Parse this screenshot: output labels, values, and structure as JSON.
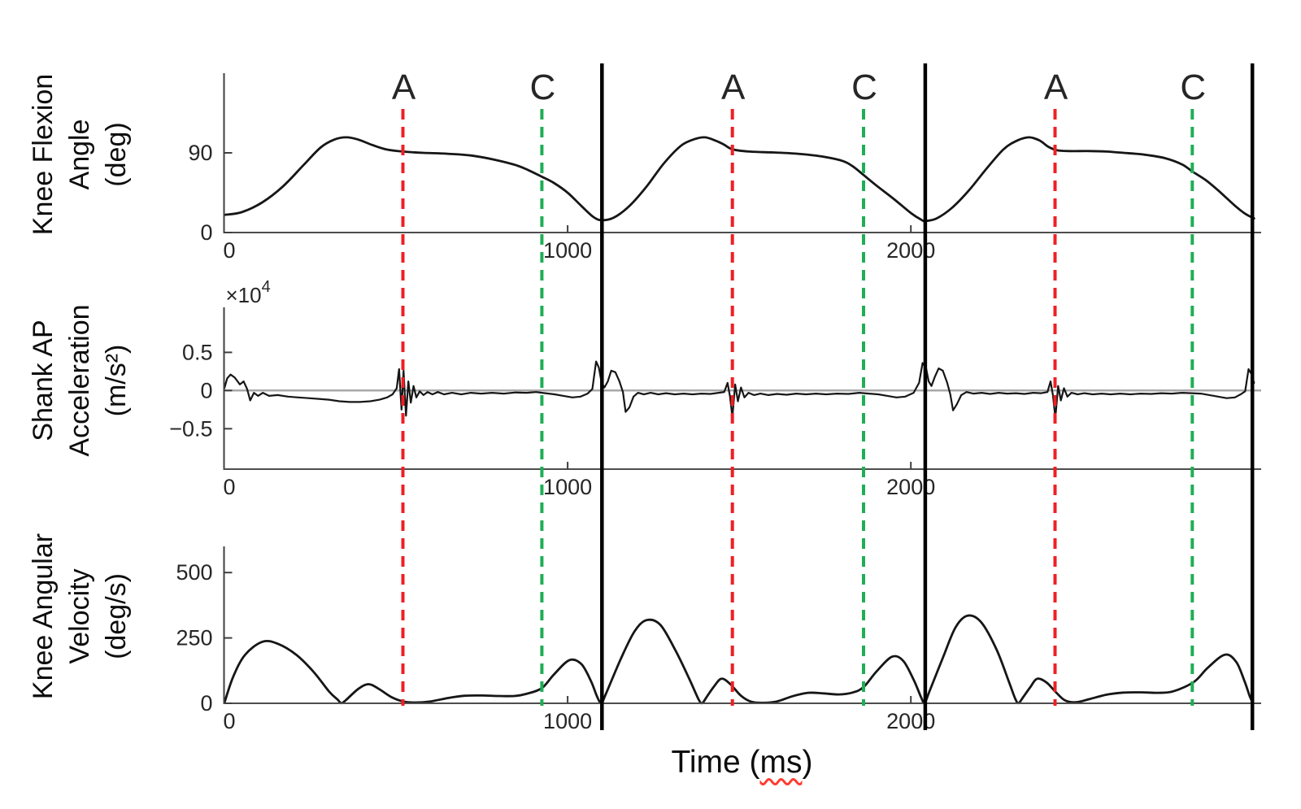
{
  "figure": {
    "background": "#ffffff",
    "ylabels": [
      {
        "lines": [
          "Knee Flexion",
          "Angle",
          "(deg)"
        ]
      },
      {
        "lines": [
          "Shank AP",
          "Acceleration",
          "(m/s²)"
        ]
      },
      {
        "lines": [
          "Knee Angular",
          "Velocity",
          "(deg/s)"
        ]
      }
    ],
    "xlabel": {
      "prefix": "Time (",
      "underlined": "ms",
      "suffix": ")"
    }
  },
  "events": {
    "groups": [
      {
        "name": "A",
        "label": "A",
        "color": "#ee1f24",
        "style": "dashed",
        "times": [
          520,
          1480,
          2420
        ]
      },
      {
        "name": "C",
        "label": "C",
        "color": "#1fae55",
        "style": "dashed",
        "times": [
          925,
          1862,
          2820
        ]
      },
      {
        "name": "cycle-boundary",
        "label": "",
        "color": "#000000",
        "style": "solid",
        "times": [
          1100,
          2042,
          2995
        ]
      }
    ]
  },
  "chart_data": [
    {
      "id": "knee-flexion-angle",
      "type": "line",
      "title": "",
      "ylabel": "Knee Flexion Angle (deg)",
      "xlabel": "Time (ms)",
      "xlim": [
        0,
        3000
      ],
      "ylim": [
        0,
        180
      ],
      "xticks": [
        0,
        1000,
        2000
      ],
      "yticks": [
        0,
        90
      ],
      "grid": false,
      "smooth": true,
      "line_color": "#161616",
      "points": [
        [
          0,
          20
        ],
        [
          50,
          23
        ],
        [
          110,
          34
        ],
        [
          170,
          52
        ],
        [
          230,
          76
        ],
        [
          280,
          96
        ],
        [
          320,
          105
        ],
        [
          355,
          107.5
        ],
        [
          390,
          105
        ],
        [
          430,
          99
        ],
        [
          470,
          94
        ],
        [
          520,
          91.5
        ],
        [
          580,
          90
        ],
        [
          650,
          89
        ],
        [
          720,
          87
        ],
        [
          790,
          82
        ],
        [
          850,
          76
        ],
        [
          885,
          70.5
        ],
        [
          925,
          63
        ],
        [
          960,
          56
        ],
        [
          1000,
          45
        ],
        [
          1040,
          30
        ],
        [
          1075,
          17.5
        ],
        [
          1100,
          14
        ],
        [
          1135,
          17
        ],
        [
          1180,
          30
        ],
        [
          1230,
          52
        ],
        [
          1280,
          78
        ],
        [
          1330,
          98
        ],
        [
          1370,
          105.5
        ],
        [
          1400,
          107.5
        ],
        [
          1430,
          104
        ],
        [
          1455,
          99.5
        ],
        [
          1480,
          94
        ],
        [
          1530,
          91.5
        ],
        [
          1600,
          90.5
        ],
        [
          1670,
          89
        ],
        [
          1740,
          86
        ],
        [
          1800,
          81
        ],
        [
          1830,
          75
        ],
        [
          1862,
          65
        ],
        [
          1900,
          53
        ],
        [
          1950,
          38
        ],
        [
          2000,
          22
        ],
        [
          2030,
          14.5
        ],
        [
          2042,
          13
        ],
        [
          2075,
          16
        ],
        [
          2120,
          28
        ],
        [
          2170,
          48
        ],
        [
          2220,
          72
        ],
        [
          2270,
          94
        ],
        [
          2310,
          104
        ],
        [
          2345,
          107.5
        ],
        [
          2375,
          104
        ],
        [
          2400,
          97
        ],
        [
          2425,
          93
        ],
        [
          2460,
          92
        ],
        [
          2520,
          92
        ],
        [
          2570,
          91.5
        ],
        [
          2620,
          90
        ],
        [
          2680,
          88
        ],
        [
          2740,
          84
        ],
        [
          2790,
          77
        ],
        [
          2820,
          69
        ],
        [
          2860,
          59
        ],
        [
          2900,
          46
        ],
        [
          2945,
          30
        ],
        [
          2975,
          21
        ],
        [
          3000,
          16
        ]
      ]
    },
    {
      "id": "shank-ap-acceleration",
      "type": "line",
      "title": "",
      "ylabel": "Shank AP Acceleration (m/s²)",
      "xlabel": "Time (ms)",
      "scale_label": {
        "multiplier": "×10",
        "exponent": "4"
      },
      "xlim": [
        0,
        3000
      ],
      "ylim": [
        -1.03,
        1.09
      ],
      "xticks": [
        0,
        1000,
        2000
      ],
      "yticks": [
        -0.5,
        0,
        0.5
      ],
      "zero_line": true,
      "zero_line_color": "#a8a8a8",
      "grid": false,
      "smooth": false,
      "line_color": "#161616",
      "points": [
        [
          0,
          0.03
        ],
        [
          8,
          0.16
        ],
        [
          18,
          0.21
        ],
        [
          30,
          0.17
        ],
        [
          45,
          0.08
        ],
        [
          56,
          0.12
        ],
        [
          66,
          0.02
        ],
        [
          75,
          -0.13
        ],
        [
          86,
          -0.03
        ],
        [
          98,
          -0.07
        ],
        [
          112,
          -0.03
        ],
        [
          130,
          -0.07
        ],
        [
          155,
          -0.06
        ],
        [
          185,
          -0.08
        ],
        [
          215,
          -0.09
        ],
        [
          245,
          -0.1
        ],
        [
          275,
          -0.11
        ],
        [
          305,
          -0.12
        ],
        [
          335,
          -0.14
        ],
        [
          365,
          -0.15
        ],
        [
          395,
          -0.15
        ],
        [
          425,
          -0.14
        ],
        [
          452,
          -0.12
        ],
        [
          474,
          -0.09
        ],
        [
          490,
          -0.05
        ],
        [
          502,
          0.03
        ],
        [
          509,
          0.28
        ],
        [
          516,
          -0.25
        ],
        [
          522,
          0.26
        ],
        [
          529,
          -0.33
        ],
        [
          536,
          0.12
        ],
        [
          543,
          -0.16
        ],
        [
          551,
          0.06
        ],
        [
          559,
          -0.09
        ],
        [
          569,
          -0.01
        ],
        [
          580,
          -0.06
        ],
        [
          592,
          -0.02
        ],
        [
          606,
          -0.05
        ],
        [
          622,
          -0.02
        ],
        [
          640,
          -0.05
        ],
        [
          663,
          -0.03
        ],
        [
          690,
          -0.05
        ],
        [
          718,
          -0.03
        ],
        [
          748,
          -0.04
        ],
        [
          780,
          -0.03
        ],
        [
          814,
          -0.04
        ],
        [
          848,
          -0.025
        ],
        [
          880,
          -0.03
        ],
        [
          908,
          -0.02
        ],
        [
          935,
          -0.035
        ],
        [
          962,
          -0.05
        ],
        [
          988,
          -0.07
        ],
        [
          1014,
          -0.09
        ],
        [
          1038,
          -0.08
        ],
        [
          1058,
          -0.04
        ],
        [
          1072,
          0.02
        ],
        [
          1083,
          0.38
        ],
        [
          1091,
          0.3
        ],
        [
          1099,
          0.1
        ],
        [
          1107,
          0.04
        ],
        [
          1117,
          0.12
        ],
        [
          1127,
          0.26
        ],
        [
          1139,
          0.24
        ],
        [
          1151,
          0.12
        ],
        [
          1161,
          -0.02
        ],
        [
          1169,
          -0.28
        ],
        [
          1180,
          -0.22
        ],
        [
          1192,
          -0.08
        ],
        [
          1205,
          -0.03
        ],
        [
          1222,
          -0.05
        ],
        [
          1242,
          -0.03
        ],
        [
          1264,
          -0.05
        ],
        [
          1287,
          -0.035
        ],
        [
          1312,
          -0.05
        ],
        [
          1338,
          -0.04
        ],
        [
          1364,
          -0.05
        ],
        [
          1390,
          -0.04
        ],
        [
          1416,
          -0.045
        ],
        [
          1440,
          -0.03
        ],
        [
          1456,
          -0.02
        ],
        [
          1466,
          0.1
        ],
        [
          1473,
          -0.08
        ],
        [
          1480,
          -0.35
        ],
        [
          1488,
          0.08
        ],
        [
          1496,
          -0.14
        ],
        [
          1505,
          0.04
        ],
        [
          1515,
          -0.09
        ],
        [
          1527,
          -0.03
        ],
        [
          1543,
          -0.06
        ],
        [
          1562,
          -0.04
        ],
        [
          1585,
          -0.06
        ],
        [
          1610,
          -0.045
        ],
        [
          1638,
          -0.055
        ],
        [
          1666,
          -0.04
        ],
        [
          1695,
          -0.05
        ],
        [
          1724,
          -0.04
        ],
        [
          1753,
          -0.05
        ],
        [
          1785,
          -0.04
        ],
        [
          1818,
          -0.045
        ],
        [
          1850,
          -0.03
        ],
        [
          1878,
          -0.04
        ],
        [
          1905,
          -0.05
        ],
        [
          1932,
          -0.07
        ],
        [
          1958,
          -0.09
        ],
        [
          1984,
          -0.08
        ],
        [
          2008,
          -0.03
        ],
        [
          2024,
          0.1
        ],
        [
          2034,
          0.36
        ],
        [
          2044,
          0.3
        ],
        [
          2052,
          0.12
        ],
        [
          2060,
          0.06
        ],
        [
          2070,
          0.18
        ],
        [
          2081,
          0.29
        ],
        [
          2093,
          0.26
        ],
        [
          2106,
          0.1
        ],
        [
          2115,
          -0.05
        ],
        [
          2123,
          -0.26
        ],
        [
          2134,
          -0.18
        ],
        [
          2147,
          -0.06
        ],
        [
          2162,
          -0.02
        ],
        [
          2182,
          -0.04
        ],
        [
          2206,
          -0.03
        ],
        [
          2231,
          -0.045
        ],
        [
          2256,
          -0.03
        ],
        [
          2281,
          -0.04
        ],
        [
          2306,
          -0.035
        ],
        [
          2331,
          -0.045
        ],
        [
          2356,
          -0.03
        ],
        [
          2380,
          -0.035
        ],
        [
          2398,
          -0.02
        ],
        [
          2407,
          0.12
        ],
        [
          2414,
          -0.06
        ],
        [
          2421,
          -0.36
        ],
        [
          2429,
          0.06
        ],
        [
          2437,
          -0.13
        ],
        [
          2446,
          0.03
        ],
        [
          2456,
          -0.08
        ],
        [
          2468,
          -0.03
        ],
        [
          2486,
          -0.05
        ],
        [
          2506,
          -0.035
        ],
        [
          2530,
          -0.05
        ],
        [
          2556,
          -0.04
        ],
        [
          2582,
          -0.05
        ],
        [
          2610,
          -0.04
        ],
        [
          2640,
          -0.05
        ],
        [
          2670,
          -0.04
        ],
        [
          2700,
          -0.045
        ],
        [
          2730,
          -0.035
        ],
        [
          2760,
          -0.04
        ],
        [
          2790,
          -0.03
        ],
        [
          2818,
          -0.035
        ],
        [
          2845,
          -0.04
        ],
        [
          2870,
          -0.06
        ],
        [
          2895,
          -0.08
        ],
        [
          2920,
          -0.1
        ],
        [
          2944,
          -0.09
        ],
        [
          2961,
          -0.05
        ],
        [
          2974,
          -0.01
        ],
        [
          2984,
          0.28
        ],
        [
          2992,
          0.22
        ],
        [
          3000,
          0.1
        ]
      ]
    },
    {
      "id": "knee-angular-velocity",
      "type": "line",
      "title": "",
      "ylabel": "Knee Angular Velocity (deg/s)",
      "xlabel": "Time (ms)",
      "xlim": [
        0,
        3000
      ],
      "ylim": [
        0,
        600
      ],
      "xticks": [
        0,
        1000,
        2000
      ],
      "yticks": [
        0,
        250,
        500
      ],
      "grid": false,
      "smooth": true,
      "line_color": "#161616",
      "points": [
        [
          0,
          2
        ],
        [
          25,
          100
        ],
        [
          60,
          185
        ],
        [
          110,
          235
        ],
        [
          155,
          228
        ],
        [
          210,
          185
        ],
        [
          260,
          120
        ],
        [
          305,
          45
        ],
        [
          330,
          14
        ],
        [
          340,
          1
        ],
        [
          352,
          10
        ],
        [
          390,
          55
        ],
        [
          420,
          73
        ],
        [
          450,
          55
        ],
        [
          485,
          25
        ],
        [
          520,
          7
        ],
        [
          555,
          3
        ],
        [
          600,
          7
        ],
        [
          650,
          20
        ],
        [
          700,
          29
        ],
        [
          750,
          30
        ],
        [
          800,
          28
        ],
        [
          845,
          28
        ],
        [
          880,
          36
        ],
        [
          925,
          58
        ],
        [
          960,
          110
        ],
        [
          1005,
          165
        ],
        [
          1040,
          150
        ],
        [
          1068,
          85
        ],
        [
          1085,
          28
        ],
        [
          1098,
          1
        ],
        [
          1112,
          38
        ],
        [
          1155,
          170
        ],
        [
          1195,
          275
        ],
        [
          1230,
          318
        ],
        [
          1270,
          300
        ],
        [
          1315,
          200
        ],
        [
          1355,
          92
        ],
        [
          1382,
          14
        ],
        [
          1392,
          1
        ],
        [
          1404,
          22
        ],
        [
          1425,
          62
        ],
        [
          1448,
          94
        ],
        [
          1474,
          73
        ],
        [
          1505,
          29
        ],
        [
          1535,
          6
        ],
        [
          1570,
          2
        ],
        [
          1610,
          7
        ],
        [
          1655,
          27
        ],
        [
          1700,
          40
        ],
        [
          1745,
          38
        ],
        [
          1790,
          34
        ],
        [
          1830,
          41
        ],
        [
          1862,
          62
        ],
        [
          1900,
          122
        ],
        [
          1945,
          178
        ],
        [
          1978,
          162
        ],
        [
          2008,
          90
        ],
        [
          2030,
          22
        ],
        [
          2040,
          1
        ],
        [
          2054,
          45
        ],
        [
          2095,
          180
        ],
        [
          2130,
          290
        ],
        [
          2165,
          335
        ],
        [
          2205,
          310
        ],
        [
          2250,
          205
        ],
        [
          2285,
          85
        ],
        [
          2304,
          18
        ],
        [
          2314,
          1
        ],
        [
          2328,
          25
        ],
        [
          2348,
          62
        ],
        [
          2368,
          94
        ],
        [
          2395,
          80
        ],
        [
          2420,
          46
        ],
        [
          2448,
          12
        ],
        [
          2480,
          4
        ],
        [
          2520,
          16
        ],
        [
          2570,
          33
        ],
        [
          2620,
          41
        ],
        [
          2670,
          42
        ],
        [
          2720,
          40
        ],
        [
          2765,
          46
        ],
        [
          2825,
          82
        ],
        [
          2865,
          136
        ],
        [
          2915,
          186
        ],
        [
          2948,
          158
        ],
        [
          2972,
          85
        ],
        [
          2988,
          25
        ],
        [
          2997,
          1
        ]
      ]
    }
  ]
}
